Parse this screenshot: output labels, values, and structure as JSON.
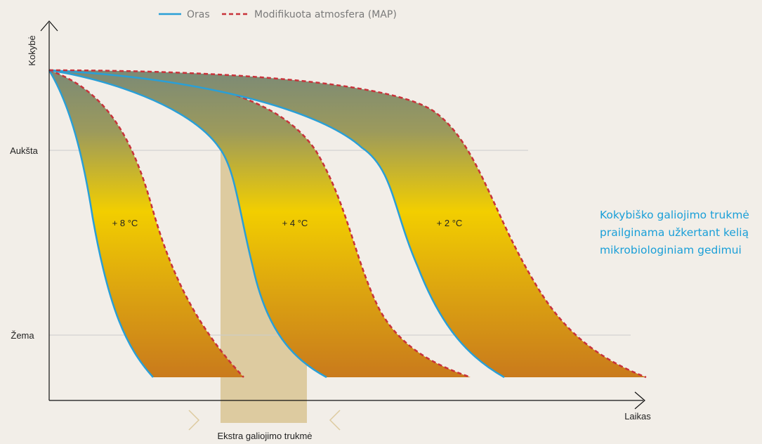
{
  "legend": {
    "solid_label": "Oras",
    "dashed_label": "Modifikuota atmosfera (MAP)"
  },
  "axes": {
    "y_label": "Kokybė",
    "x_label": "Laikas"
  },
  "levels": {
    "high": "Aukšta",
    "low": "Žema"
  },
  "bands": [
    {
      "label": "+ 8 °C"
    },
    {
      "label": "+ 4 °C"
    },
    {
      "label": "+ 2 °C"
    }
  ],
  "extension_label": "Ekstra galiojimo trukmė",
  "note_lines": [
    "Kokybiško galiojimo trukmė",
    "prailginama užkertant kelią",
    "mikrobiologiniam gedimui"
  ],
  "colors": {
    "solid_line": "#2a9fd6",
    "dashed_line": "#c8323a",
    "gradient_top": "#7b8a76",
    "gradient_mid": "#f2ce00",
    "gradient_bottom": "#c97a1c",
    "extension_band": "#ddcba0",
    "note_text": "#1a9fd8",
    "background": "#f2eee8"
  }
}
